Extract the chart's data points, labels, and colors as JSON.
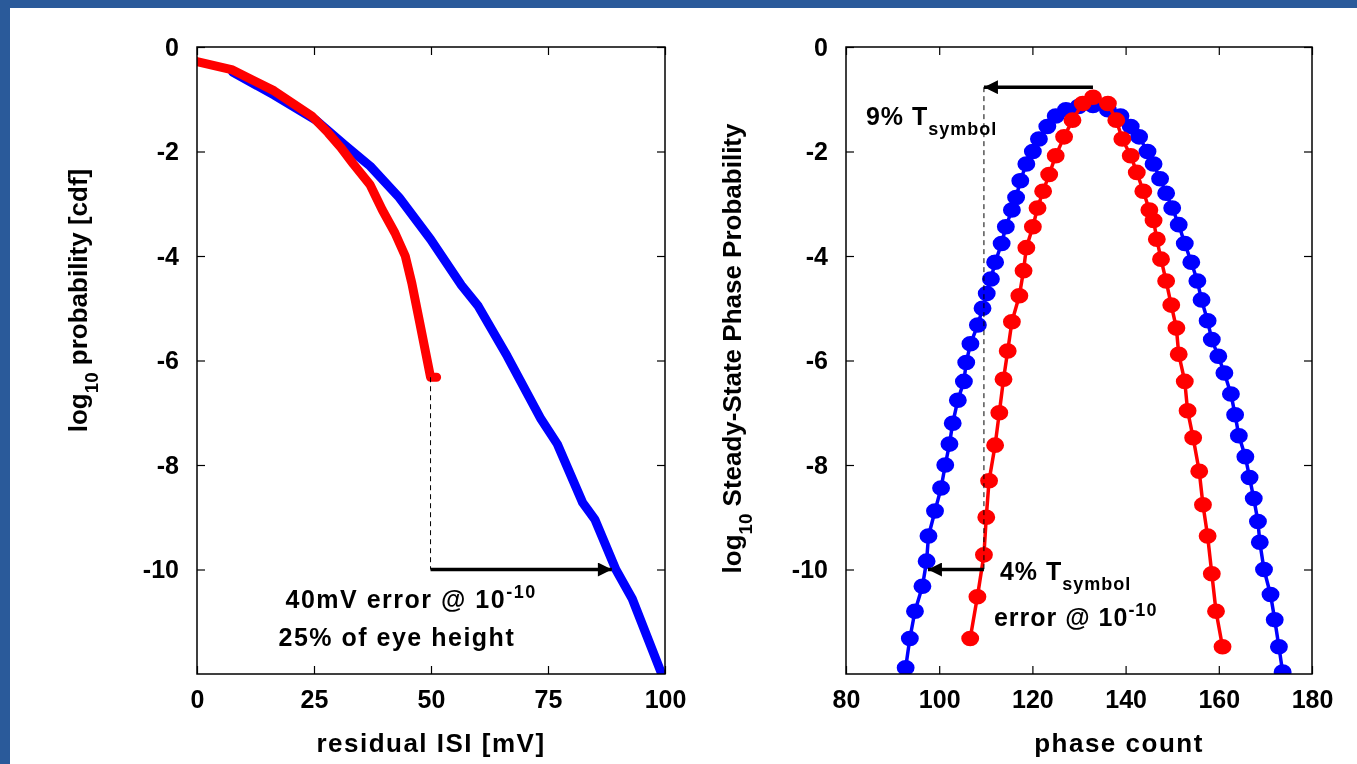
{
  "chart_data": [
    {
      "type": "line",
      "xlabel": "residual ISI [mV]",
      "ylabel": "log$_{10}$ probability [cdf]",
      "xlim": [
        0,
        100
      ],
      "xticks": [
        0,
        25,
        50,
        75,
        100
      ],
      "ylim": [
        -12,
        0
      ],
      "yticks": [
        0,
        -2,
        -4,
        -6,
        -8,
        -10
      ],
      "grid": false,
      "marker": "none",
      "series": [
        {
          "color": "#0000ff",
          "x": [
            7.6,
            16.5,
            25.4,
            31.6,
            37,
            43.2,
            49.9,
            56.5,
            60.1,
            66.3,
            73.5,
            77,
            82.4,
            85,
            89.5,
            93,
            99.3
          ],
          "values": [
            -0.48,
            -0.92,
            -1.4,
            -1.88,
            -2.28,
            -2.88,
            -3.68,
            -4.56,
            -4.96,
            -5.92,
            -7.12,
            -7.6,
            -8.72,
            -9.04,
            -10,
            -10.56,
            -12
          ]
        },
        {
          "color": "#ff0000",
          "x": [
            0,
            7.6,
            16.5,
            24.5,
            28,
            30.7,
            33.4,
            37,
            39.6,
            42.3,
            44.5,
            45.9,
            47.6,
            49.9,
            51.2
          ],
          "values": [
            -0.28,
            -0.44,
            -0.84,
            -1.32,
            -1.64,
            -1.92,
            -2.24,
            -2.64,
            -3.12,
            -3.56,
            -4,
            -4.52,
            -5.28,
            -6.32,
            -6.32
          ]
        }
      ],
      "annotations": [
        {
          "text": "40mV error @ 10$^{-10}$",
          "x": 89.5,
          "y": -10
        },
        "25% of eye height"
      ]
    },
    {
      "type": "line",
      "xlabel": "phase count",
      "ylabel": "log$_{10}$ Steady-State Phase Probability",
      "xlim": [
        80,
        180
      ],
      "xticks": [
        80,
        100,
        120,
        140,
        160,
        180
      ],
      "ylim": [
        -12,
        0
      ],
      "yticks": [
        0,
        -2,
        -4,
        -6,
        -8,
        -10
      ],
      "grid": false,
      "marker": "circle",
      "series": [
        {
          "color": "#0000ff",
          "x": [
            92.8,
            93.7,
            94.8,
            96.4,
            97.3,
            97.7,
            99.1,
            100.4,
            101.3,
            102.2,
            102.9,
            104,
            105.3,
            105.8,
            106.7,
            108.3,
            109.3,
            110.2,
            111.1,
            112,
            113.4,
            114.3,
            115.6,
            116.5,
            117.4,
            118.7,
            120.1,
            121.4,
            123.2,
            125,
            127.2,
            129.9,
            133,
            136.2,
            138.9,
            141.1,
            142.9,
            144.7,
            146,
            147.4,
            148.7,
            150,
            151.4,
            152.7,
            154.1,
            155.4,
            156.3,
            157.6,
            158.5,
            159.9,
            161.2,
            162.6,
            163.5,
            164.3,
            165.7,
            166.6,
            167.5,
            168.4,
            168.8,
            169.7,
            171.1,
            172,
            172.9,
            173.7
          ],
          "values": [
            -11.88,
            -11.32,
            -10.8,
            -10.32,
            -9.84,
            -9.36,
            -8.88,
            -8.44,
            -8,
            -7.6,
            -7.2,
            -6.76,
            -6.4,
            -6.04,
            -5.68,
            -5.32,
            -5,
            -4.72,
            -4.44,
            -4.12,
            -3.76,
            -3.44,
            -3.12,
            -2.88,
            -2.56,
            -2.24,
            -2,
            -1.76,
            -1.52,
            -1.32,
            -1.2,
            -1.14,
            -1.12,
            -1.2,
            -1.32,
            -1.52,
            -1.72,
            -2,
            -2.24,
            -2.52,
            -2.8,
            -3.08,
            -3.4,
            -3.76,
            -4.12,
            -4.48,
            -4.84,
            -5.24,
            -5.6,
            -5.92,
            -6.24,
            -6.64,
            -7.04,
            -7.44,
            -7.84,
            -8.24,
            -8.64,
            -9.08,
            -9.48,
            -10,
            -10.48,
            -10.96,
            -11.48,
            -11.96
          ]
        },
        {
          "color": "#ff0000",
          "x": [
            106.65,
            108.2,
            109.6,
            110.1,
            110.7,
            112,
            112.9,
            113.8,
            114.7,
            115.6,
            117.2,
            118.1,
            118.7,
            120.1,
            121.1,
            122.3,
            123.6,
            125,
            126.8,
            128.6,
            130.8,
            133,
            136.2,
            138,
            139.3,
            141.1,
            142.4,
            143.8,
            145.1,
            146,
            146.7,
            147.6,
            148.7,
            149.8,
            150.9,
            151.4,
            152.7,
            153.3,
            154.5,
            155.8,
            156.6,
            157.6,
            158.5,
            159.4,
            160.8
          ],
          "values": [
            -11.32,
            -10.52,
            -9.72,
            -9,
            -8.3,
            -7.62,
            -7,
            -6.36,
            -5.82,
            -5.26,
            -4.76,
            -4.28,
            -3.84,
            -3.44,
            -3.08,
            -2.76,
            -2.44,
            -2.08,
            -1.72,
            -1.4,
            -1.08,
            -0.96,
            -1.08,
            -1.4,
            -1.76,
            -2.08,
            -2.4,
            -2.76,
            -3.12,
            -3.32,
            -3.68,
            -4.06,
            -4.48,
            -4.94,
            -5.38,
            -5.88,
            -6.4,
            -6.96,
            -7.48,
            -8.12,
            -8.76,
            -9.36,
            -10.08,
            -10.8,
            -11.48
          ]
        }
      ],
      "annotations": [
        "9% T$_{symbol}$",
        {
          "text": "4% T$_{symbol}$",
          "x": 96.3,
          "y": -10
        },
        "error @ 10$^{-10}$"
      ]
    }
  ]
}
